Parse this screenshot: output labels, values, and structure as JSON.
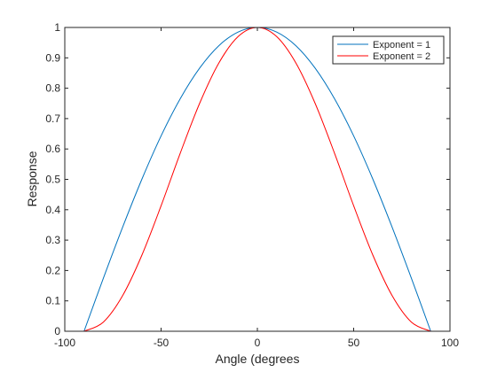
{
  "chart_data": {
    "type": "line",
    "title": "",
    "xlabel": "Angle (degrees",
    "ylabel": "Response",
    "xlim": [
      -100,
      100
    ],
    "ylim": [
      0,
      1
    ],
    "xticks": [
      -100,
      -50,
      0,
      50,
      100
    ],
    "yticks": [
      0,
      0.1,
      0.2,
      0.3,
      0.4,
      0.5,
      0.6,
      0.7,
      0.8,
      0.9,
      1
    ],
    "xtick_labels": [
      "-100",
      "-50",
      "0",
      "50",
      "100"
    ],
    "ytick_labels": [
      "0",
      "0.1",
      "0.2",
      "0.3",
      "0.4",
      "0.5",
      "0.6",
      "0.7",
      "0.8",
      "0.9",
      "1"
    ],
    "grid": false,
    "legend_position": "top-right",
    "x": [
      -90,
      -80,
      -70,
      -60,
      -50,
      -40,
      -30,
      -20,
      -10,
      0,
      10,
      20,
      30,
      40,
      50,
      60,
      70,
      80,
      90
    ],
    "series": [
      {
        "name": "Exponent = 1",
        "color": "#0072bd",
        "values": [
          0,
          0.174,
          0.342,
          0.5,
          0.643,
          0.766,
          0.866,
          0.94,
          0.985,
          1,
          0.985,
          0.94,
          0.866,
          0.766,
          0.643,
          0.5,
          0.342,
          0.174,
          0
        ]
      },
      {
        "name": "Exponent = 2",
        "color": "#ff0000",
        "values": [
          0,
          0.03,
          0.117,
          0.25,
          0.413,
          0.587,
          0.75,
          0.883,
          0.97,
          1,
          0.97,
          0.883,
          0.75,
          0.587,
          0.413,
          0.25,
          0.117,
          0.03,
          0
        ]
      }
    ]
  }
}
